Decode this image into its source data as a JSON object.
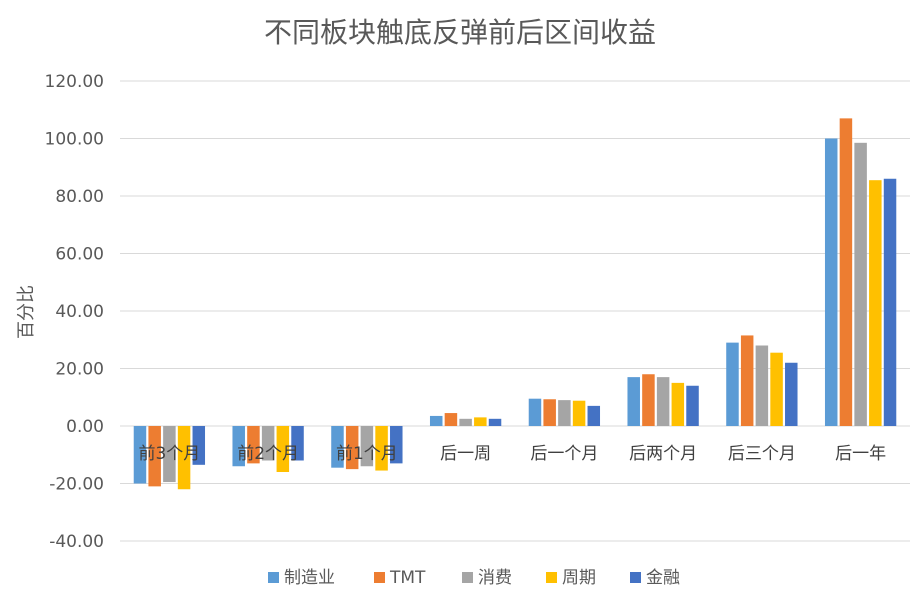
{
  "chart_data": {
    "type": "bar",
    "title": "不同板块触底反弹前后区间收益",
    "xlabel": "",
    "ylabel": "百分比",
    "ylim": [
      -40,
      120
    ],
    "yticks": [
      "120.00",
      "100.00",
      "80.00",
      "60.00",
      "40.00",
      "20.00",
      "0.00",
      "-20.00",
      "-40.00"
    ],
    "grid": true,
    "legend_position": "bottom",
    "categories": [
      "前3个月",
      "前2个月",
      "前1个月",
      "后一周",
      "后一个月",
      "后两个月",
      "后三个月",
      "后一年"
    ],
    "series": [
      {
        "name": "制造业",
        "color": "#5B9BD5",
        "values": [
          -20.0,
          -14.0,
          -14.5,
          3.5,
          9.5,
          17.0,
          29.0,
          100.0
        ]
      },
      {
        "name": "TMT",
        "color": "#ED7D31",
        "values": [
          -21.0,
          -13.0,
          -15.0,
          4.5,
          9.3,
          18.0,
          31.5,
          107.0
        ]
      },
      {
        "name": "消费",
        "color": "#A5A5A5",
        "values": [
          -19.5,
          -12.0,
          -14.0,
          2.5,
          9.0,
          17.0,
          28.0,
          98.5
        ]
      },
      {
        "name": "周期",
        "color": "#FFC000",
        "values": [
          -22.0,
          -16.0,
          -15.5,
          3.0,
          8.8,
          15.0,
          25.5,
          85.5
        ]
      },
      {
        "name": "金融",
        "color": "#4472C4",
        "values": [
          -13.5,
          -12.0,
          -13.0,
          2.5,
          7.0,
          14.0,
          22.0,
          86.0
        ]
      }
    ]
  }
}
